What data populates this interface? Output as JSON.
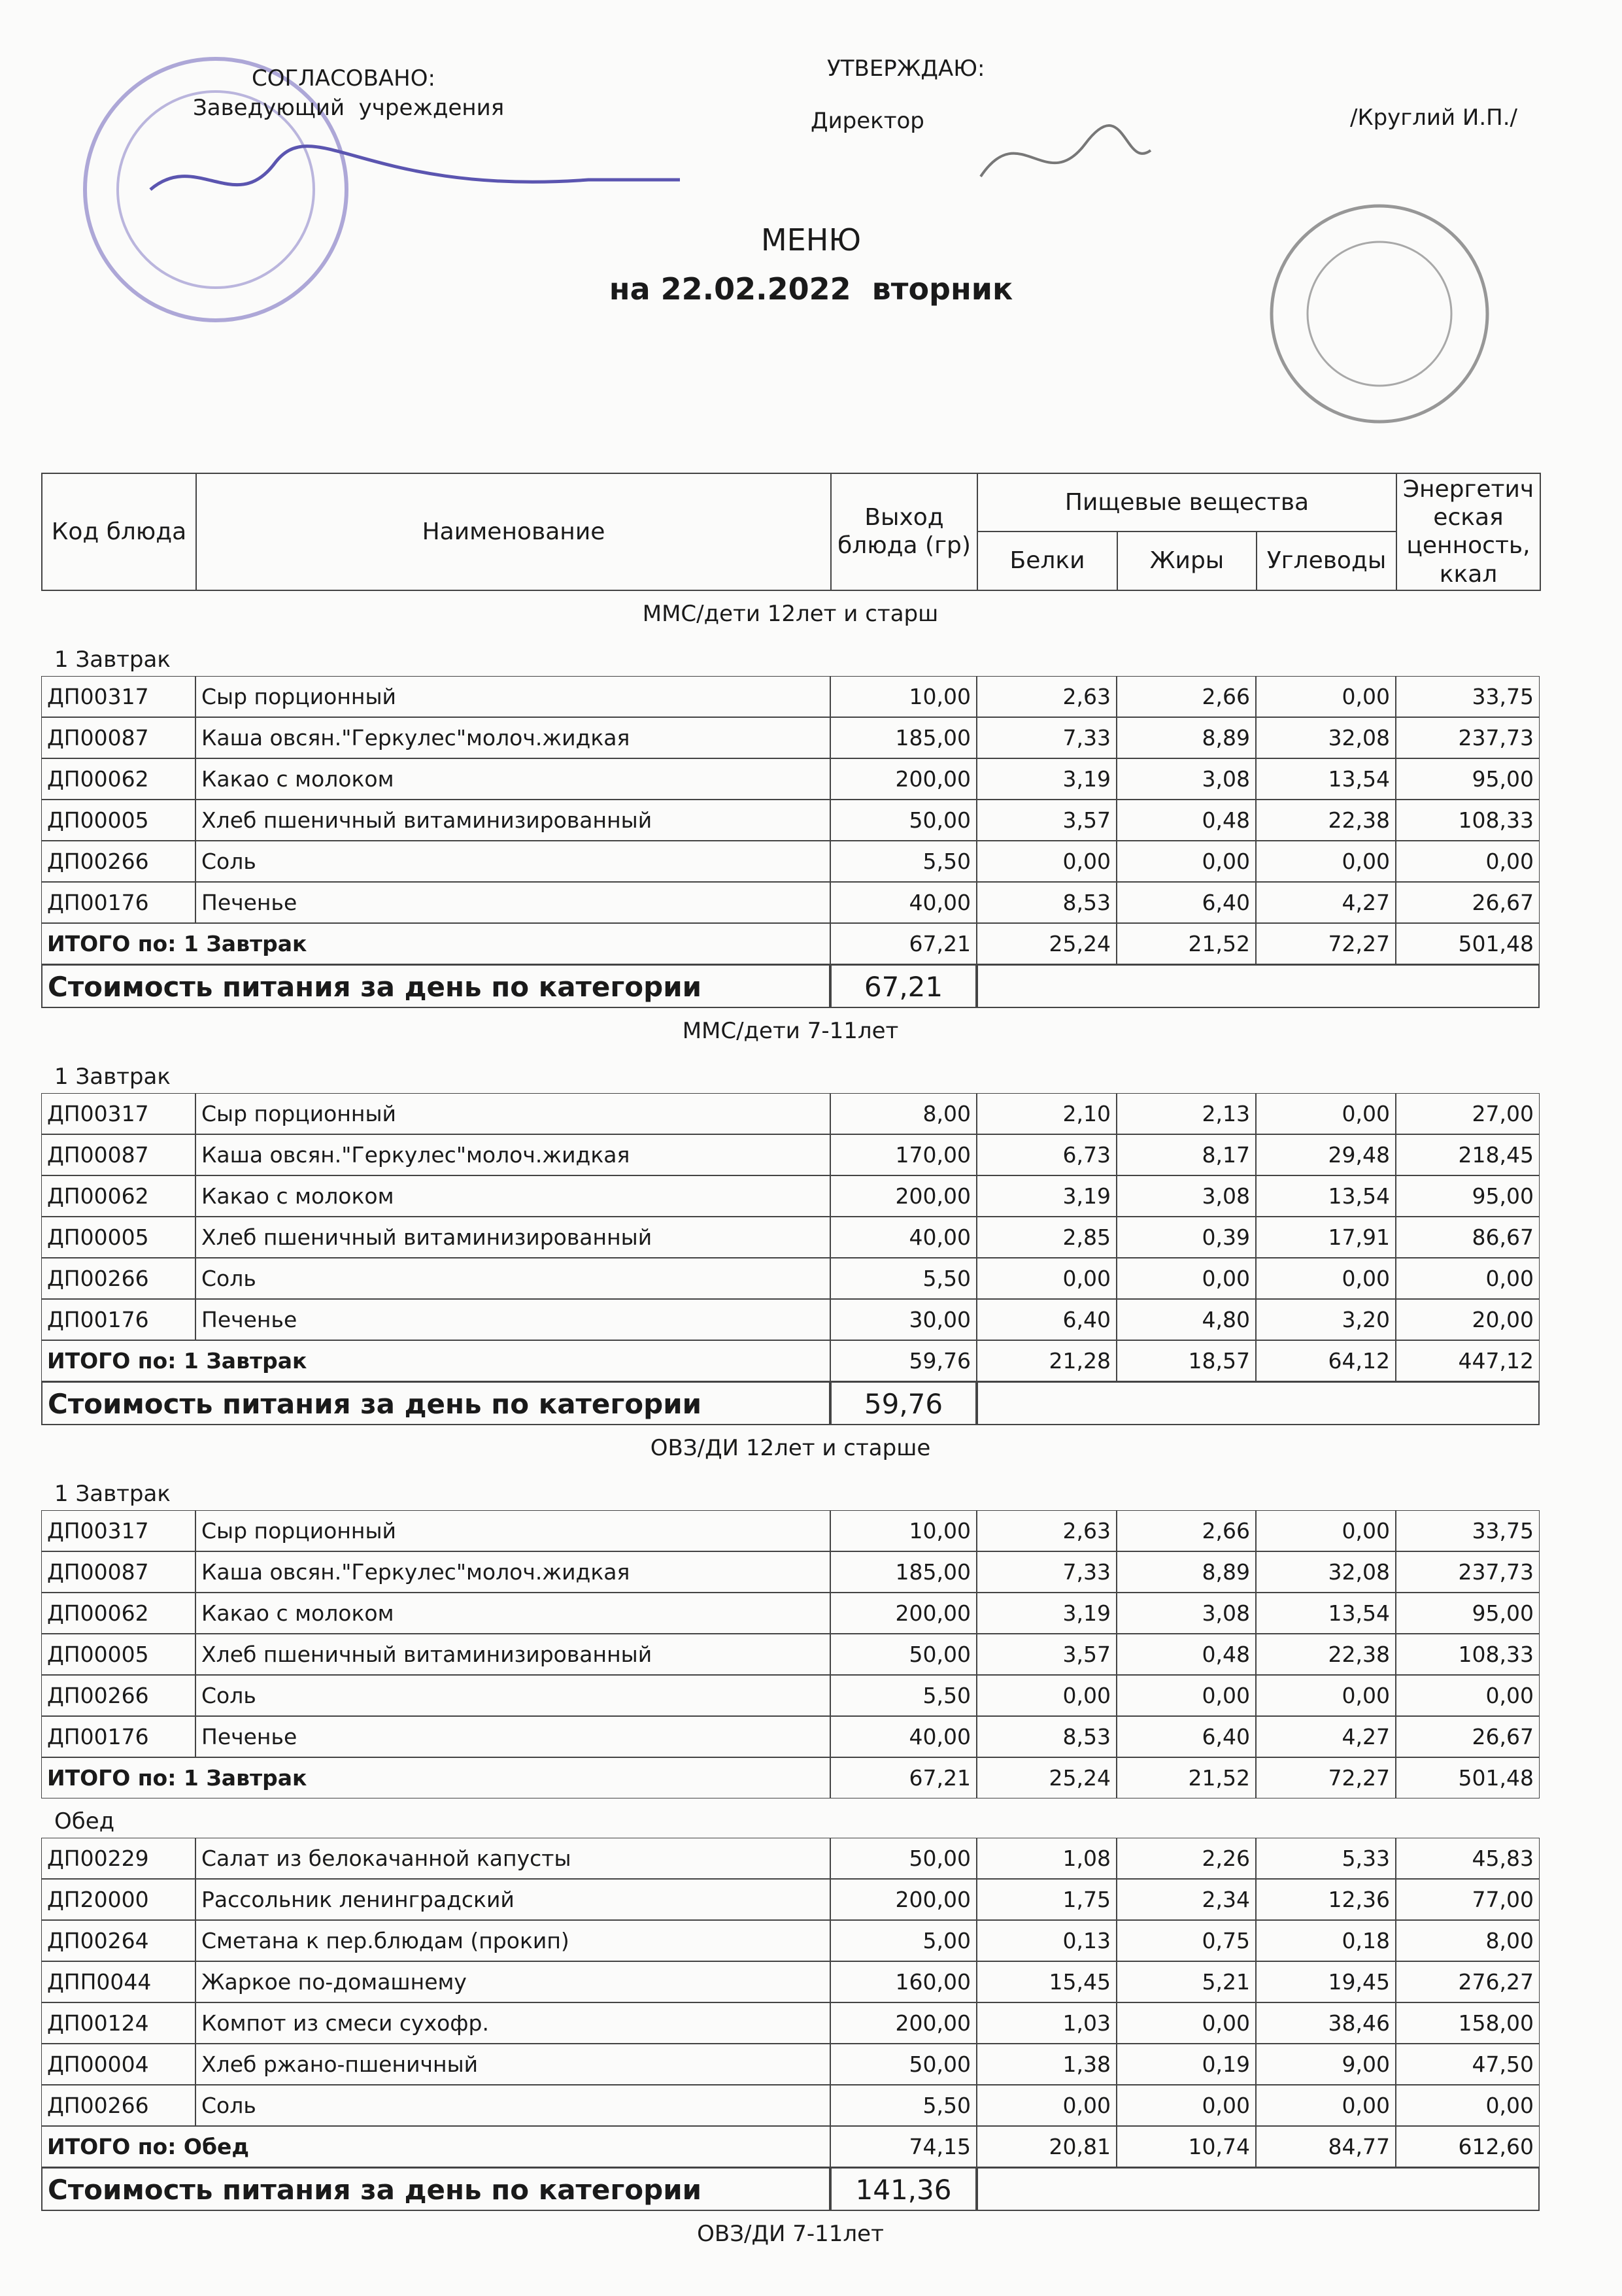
{
  "header": {
    "approved_label": "СОГЛАСОВАНО:",
    "approved_role": "Заведующий  учреждения",
    "confirm_label": "УТВЕРЖДАЮ:",
    "confirm_role": "Директор",
    "confirm_name": "/Круглий И.П./"
  },
  "title": "МЕНЮ",
  "subtitle": "на 22.02.2022  вторник",
  "table_header": {
    "code": "Код блюда",
    "name": "Наименование",
    "output": "Выход блюда (гр)",
    "nutrients": "Пищевые вещества",
    "protein": "Белки",
    "fat": "Жиры",
    "carbs": "Углеводы",
    "energy": "Энергетическая ценность, ккал"
  },
  "sections": [
    {
      "name": "ММС/дети 12лет и старш",
      "meals": [
        {
          "name": "1 Завтрак",
          "rows": [
            [
              "ДП00317",
              "Сыр порционный",
              "10,00",
              "2,63",
              "2,66",
              "0,00",
              "33,75"
            ],
            [
              "ДП00087",
              "Каша овсян.\"Геркулес\"молоч.жидкая",
              "185,00",
              "7,33",
              "8,89",
              "32,08",
              "237,73"
            ],
            [
              "ДП00062",
              "Какао с молоком",
              "200,00",
              "3,19",
              "3,08",
              "13,54",
              "95,00"
            ],
            [
              "ДП00005",
              "Хлеб пшеничный витаминизированный",
              "50,00",
              "3,57",
              "0,48",
              "22,38",
              "108,33"
            ],
            [
              "ДП00266",
              "Соль",
              "5,50",
              "0,00",
              "0,00",
              "0,00",
              "0,00"
            ],
            [
              "ДП00176",
              "Печенье",
              "40,00",
              "8,53",
              "6,40",
              "4,27",
              "26,67"
            ]
          ],
          "total": [
            "ИТОГО по: 1 Завтрак",
            "67,21",
            "25,24",
            "21,52",
            "72,27",
            "501,48"
          ]
        }
      ],
      "cost": {
        "label": "Стоимость питания за день по категории",
        "value": "67,21"
      }
    },
    {
      "name": "ММС/дети 7-11лет",
      "meals": [
        {
          "name": "1 Завтрак",
          "rows": [
            [
              "ДП00317",
              "Сыр порционный",
              "8,00",
              "2,10",
              "2,13",
              "0,00",
              "27,00"
            ],
            [
              "ДП00087",
              "Каша овсян.\"Геркулес\"молоч.жидкая",
              "170,00",
              "6,73",
              "8,17",
              "29,48",
              "218,45"
            ],
            [
              "ДП00062",
              "Какао с молоком",
              "200,00",
              "3,19",
              "3,08",
              "13,54",
              "95,00"
            ],
            [
              "ДП00005",
              "Хлеб пшеничный витаминизированный",
              "40,00",
              "2,85",
              "0,39",
              "17,91",
              "86,67"
            ],
            [
              "ДП00266",
              "Соль",
              "5,50",
              "0,00",
              "0,00",
              "0,00",
              "0,00"
            ],
            [
              "ДП00176",
              "Печенье",
              "30,00",
              "6,40",
              "4,80",
              "3,20",
              "20,00"
            ]
          ],
          "total": [
            "ИТОГО по: 1 Завтрак",
            "59,76",
            "21,28",
            "18,57",
            "64,12",
            "447,12"
          ]
        }
      ],
      "cost": {
        "label": "Стоимость питания за день по категории",
        "value": "59,76"
      }
    },
    {
      "name": "ОВЗ/ДИ 12лет и старше",
      "meals": [
        {
          "name": "1 Завтрак",
          "rows": [
            [
              "ДП00317",
              "Сыр порционный",
              "10,00",
              "2,63",
              "2,66",
              "0,00",
              "33,75"
            ],
            [
              "ДП00087",
              "Каша овсян.\"Геркулес\"молоч.жидкая",
              "185,00",
              "7,33",
              "8,89",
              "32,08",
              "237,73"
            ],
            [
              "ДП00062",
              "Какао с молоком",
              "200,00",
              "3,19",
              "3,08",
              "13,54",
              "95,00"
            ],
            [
              "ДП00005",
              "Хлеб пшеничный витаминизированный",
              "50,00",
              "3,57",
              "0,48",
              "22,38",
              "108,33"
            ],
            [
              "ДП00266",
              "Соль",
              "5,50",
              "0,00",
              "0,00",
              "0,00",
              "0,00"
            ],
            [
              "ДП00176",
              "Печенье",
              "40,00",
              "8,53",
              "6,40",
              "4,27",
              "26,67"
            ]
          ],
          "total": [
            "ИТОГО по: 1 Завтрак",
            "67,21",
            "25,24",
            "21,52",
            "72,27",
            "501,48"
          ]
        },
        {
          "name": "Обед",
          "rows": [
            [
              "ДП00229",
              "Салат из белокачанной капусты",
              "50,00",
              "1,08",
              "2,26",
              "5,33",
              "45,83"
            ],
            [
              "ДП20000",
              "Рассольник ленинградский",
              "200,00",
              "1,75",
              "2,34",
              "12,36",
              "77,00"
            ],
            [
              "ДП00264",
              "Сметана к пер.блюдам (прокип)",
              "5,00",
              "0,13",
              "0,75",
              "0,18",
              "8,00"
            ],
            [
              "ДПП0044",
              "Жаркое по-домашнему",
              "160,00",
              "15,45",
              "5,21",
              "19,45",
              "276,27"
            ],
            [
              "ДП00124",
              "Компот из смеси сухофр.",
              "200,00",
              "1,03",
              "0,00",
              "38,46",
              "158,00"
            ],
            [
              "ДП00004",
              "Хлеб ржано-пшеничный",
              "50,00",
              "1,38",
              "0,19",
              "9,00",
              "47,50"
            ],
            [
              "ДП00266",
              "Соль",
              "5,50",
              "0,00",
              "0,00",
              "0,00",
              "0,00"
            ]
          ],
          "total": [
            "ИТОГО по: Обед",
            "74,15",
            "20,81",
            "10,74",
            "84,77",
            "612,60"
          ]
        }
      ],
      "cost": {
        "label": "Стоимость питания за день по категории",
        "value": "141,36"
      }
    },
    {
      "name": "ОВЗ/ДИ 7-11лет",
      "meals": []
    }
  ]
}
